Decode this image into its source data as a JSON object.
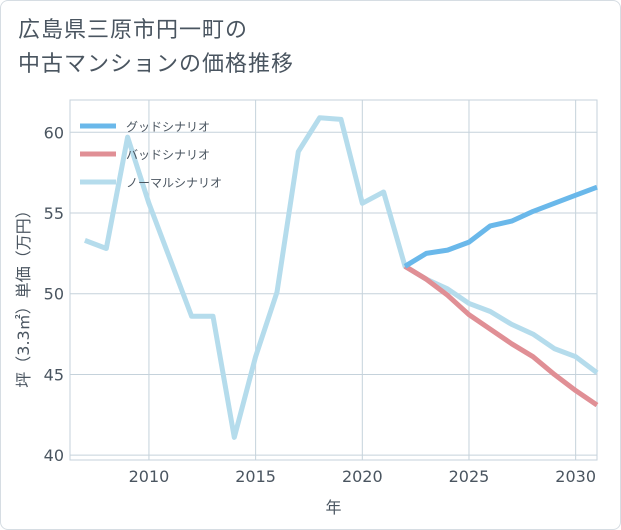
{
  "title_line1": "広島県三原市円一町の",
  "title_line2": "中古マンションの価格推移",
  "chart_data": {
    "type": "line",
    "xlabel": "年",
    "ylabel": "坪（3.3㎡）単価（万円）",
    "xlim": [
      2006.3,
      2031
    ],
    "ylim": [
      39.7,
      62
    ],
    "xticks": [
      2010,
      2015,
      2020,
      2025,
      2030
    ],
    "yticks": [
      40,
      45,
      50,
      55,
      60
    ],
    "grid": true,
    "legend_position": "top-left",
    "series": [
      {
        "name": "グッドシナリオ",
        "color": "#6ab8ea",
        "x": [
          2022,
          2023,
          2024,
          2025,
          2026,
          2027,
          2028,
          2029,
          2030,
          2031
        ],
        "y": [
          51.7,
          52.5,
          52.7,
          53.2,
          54.2,
          54.5,
          55.1,
          55.6,
          56.1,
          56.6
        ]
      },
      {
        "name": "バッドシナリオ",
        "color": "#e08f95",
        "x": [
          2022,
          2023,
          2024,
          2025,
          2026,
          2027,
          2028,
          2029,
          2030,
          2031
        ],
        "y": [
          51.7,
          50.9,
          49.9,
          48.7,
          47.8,
          46.9,
          46.1,
          45.0,
          44.0,
          43.1
        ]
      },
      {
        "name": "ノーマルシナリオ",
        "color": "#b5dcec",
        "x": [
          2007,
          2008,
          2009,
          2010,
          2011,
          2012,
          2013,
          2014,
          2015,
          2016,
          2017,
          2018,
          2019,
          2020,
          2021,
          2022,
          2023,
          2024,
          2025,
          2026,
          2027,
          2028,
          2029,
          2030,
          2031
        ],
        "y": [
          53.3,
          52.8,
          59.7,
          55.6,
          52.1,
          48.6,
          48.6,
          41.1,
          46.1,
          50.1,
          58.8,
          60.9,
          60.8,
          55.6,
          56.3,
          51.7,
          50.9,
          50.3,
          49.4,
          48.9,
          48.1,
          47.5,
          46.6,
          46.1,
          45.1
        ]
      }
    ]
  }
}
